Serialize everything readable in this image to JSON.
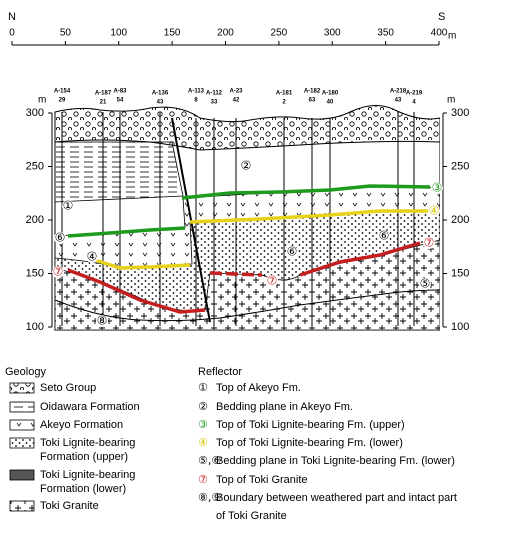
{
  "header": {
    "north": "N",
    "south": "S"
  },
  "distance_axis": {
    "ticks": [
      0,
      50,
      100,
      150,
      200,
      250,
      300,
      350,
      400
    ],
    "unit": "m"
  },
  "elevation_axis": {
    "ticks": [
      300,
      250,
      200,
      150,
      100
    ],
    "unit": "m"
  },
  "boreholes": [
    {
      "name": "A-154",
      "depth": "29"
    },
    {
      "name": "A-187",
      "depth": "21"
    },
    {
      "name": "A-83",
      "depth": "54"
    },
    {
      "name": "A-136",
      "depth": "43"
    },
    {
      "name": "A-113",
      "depth": "8"
    },
    {
      "name": "A-112",
      "depth": "33"
    },
    {
      "name": "A-23",
      "depth": "42"
    },
    {
      "name": "A-181",
      "depth": "2"
    },
    {
      "name": "A-182",
      "depth": "63"
    },
    {
      "name": "A-180",
      "depth": "40"
    },
    {
      "name": "A-218",
      "depth": "43"
    },
    {
      "name": "A-219",
      "depth": "4"
    }
  ],
  "section_markers": [
    "①",
    "②",
    "③",
    "④",
    "⑤",
    "⑥",
    "⑦",
    "⑦",
    "⑦",
    "⑧",
    "⑥",
    "⑥",
    "④"
  ],
  "legend": {
    "geology_title": "Geology",
    "geology": [
      {
        "label": [
          "Seto Group"
        ]
      },
      {
        "label": [
          "Oidawara Formation"
        ]
      },
      {
        "label": [
          "Akeyo Formation"
        ]
      },
      {
        "label": [
          "Toki Lignite-bearing",
          "Formation (upper)"
        ]
      },
      {
        "label": [
          "Toki Lignite-bearing",
          "Formation (lower)"
        ]
      },
      {
        "label": [
          "Toki Granite"
        ]
      }
    ],
    "reflector_title": "Reflector",
    "reflector": [
      {
        "symbol": "①",
        "label": [
          "Top of Akeyo Fm."
        ]
      },
      {
        "symbol": "②",
        "label": [
          "Bedding plane in Akeyo Fm."
        ]
      },
      {
        "symbol": "③",
        "label": [
          "Top of Toki Lignite-bearing Fm. (upper)"
        ]
      },
      {
        "symbol": "④",
        "label": [
          "Top of Toki Lignite-bearing Fm. (lower)"
        ]
      },
      {
        "symbol": "⑤,⑥",
        "label": [
          "Bedding plane in Toki Lignite-bearing Fm. (lower)"
        ]
      },
      {
        "symbol": "⑦",
        "label": [
          "Top of Toki Granite"
        ]
      },
      {
        "symbol": "⑧,⑨",
        "label": [
          "Boundary between weathered part and intact part",
          "of Toki Granite"
        ]
      }
    ]
  }
}
